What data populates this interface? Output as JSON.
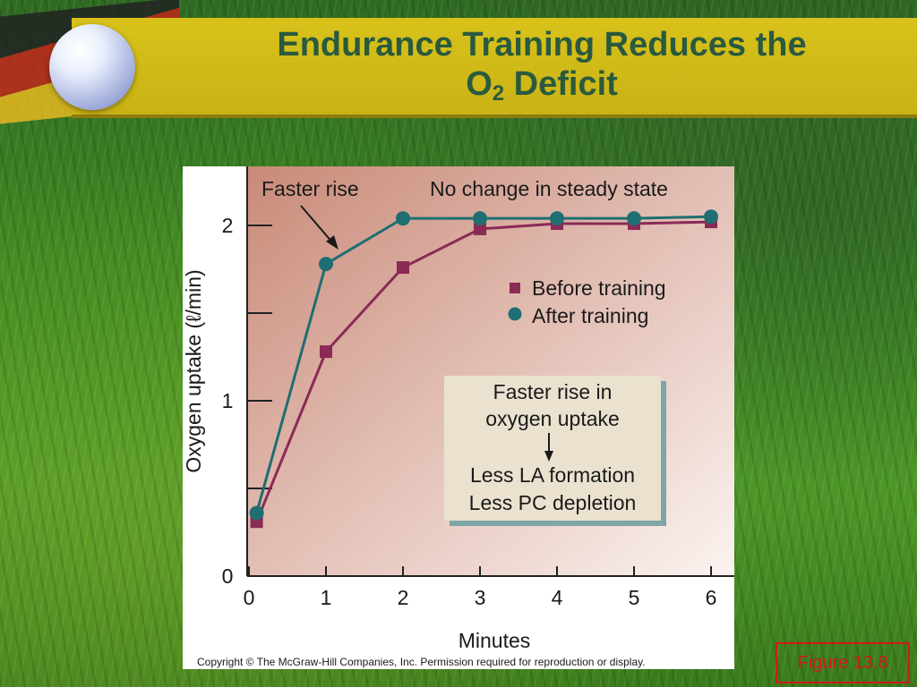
{
  "slide": {
    "title_line1": "Endurance Training Reduces the",
    "title_line2_prefix": "O",
    "title_line2_subscript": "2",
    "title_line2_suffix": " Deficit",
    "figure_label": "Figure 13.8",
    "copyright": "Copyright © The McGraw-Hill Companies, Inc. Permission required for reproduction or display."
  },
  "chart_data": {
    "type": "line",
    "title": "",
    "xlabel": "Minutes",
    "ylabel": "Oxygen uptake (ℓ/min)",
    "xlim": [
      0,
      6.3
    ],
    "ylim": [
      0,
      2.2
    ],
    "x_ticks": [
      0,
      1,
      2,
      3,
      4,
      5,
      6
    ],
    "y_tick_labels": [
      {
        "value": 0,
        "label": "0"
      },
      {
        "value": 1,
        "label": "1"
      },
      {
        "value": 2,
        "label": "2"
      }
    ],
    "y_minor_ticks": [
      0.5,
      1.5
    ],
    "series": [
      {
        "name": "Before training",
        "marker": "square",
        "color": "#8b2a55",
        "x": [
          0.1,
          1,
          2,
          3,
          4,
          5,
          6
        ],
        "y": [
          0.31,
          1.28,
          1.76,
          1.98,
          2.01,
          2.01,
          2.02
        ]
      },
      {
        "name": "After training",
        "marker": "circle",
        "color": "#1e6e72",
        "x": [
          0.1,
          1,
          2,
          3,
          4,
          5,
          6
        ],
        "y": [
          0.36,
          1.78,
          2.04,
          2.04,
          2.04,
          2.04,
          2.05
        ]
      }
    ],
    "legend_position": "right, below top",
    "annotations": {
      "faster_rise": "Faster rise",
      "steady_state": "No change in steady state",
      "box_line1": "Faster rise in",
      "box_line2": "oxygen uptake",
      "box_line3": "Less LA formation",
      "box_line4": "Less PC depletion"
    },
    "colors": {
      "background_top_left": "#c98a78",
      "background_bottom_right": "#fbf3f0",
      "info_box_fill": "#eae2cf",
      "info_box_shadow": "#7fa5a6"
    }
  }
}
